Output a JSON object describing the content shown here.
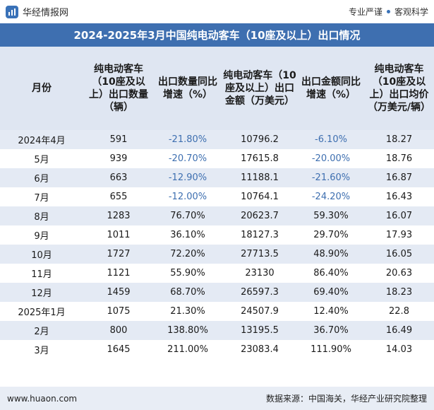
{
  "header": {
    "brand_name": "华经情报网",
    "tagline_left": "专业严谨",
    "tagline_right": "客观科学"
  },
  "title": "2024-2025年3月中国纯电动客车（10座及以上）出口情况",
  "table": {
    "columns": [
      "月份",
      "纯电动客车（10座及以上）出口数量（辆）",
      "出口数量同比增速（%）",
      "纯电动客车（10座及以上）出口金额（万美元）",
      "出口金额同比增速（%）",
      "纯电动客车（10座及以上）出口均价（万美元/辆）"
    ],
    "rows": [
      [
        "2024年4月",
        "591",
        "-21.80%",
        "10796.2",
        "-6.10%",
        "18.27"
      ],
      [
        "5月",
        "939",
        "-20.70%",
        "17615.8",
        "-20.00%",
        "18.76"
      ],
      [
        "6月",
        "663",
        "-12.90%",
        "11188.1",
        "-21.60%",
        "16.87"
      ],
      [
        "7月",
        "655",
        "-12.00%",
        "10764.1",
        "-24.20%",
        "16.43"
      ],
      [
        "8月",
        "1283",
        "76.70%",
        "20623.7",
        "59.30%",
        "16.07"
      ],
      [
        "9月",
        "1011",
        "36.10%",
        "18127.3",
        "29.70%",
        "17.93"
      ],
      [
        "10月",
        "1727",
        "72.20%",
        "27713.5",
        "48.90%",
        "16.05"
      ],
      [
        "11月",
        "1121",
        "55.90%",
        "23130",
        "86.40%",
        "20.63"
      ],
      [
        "12月",
        "1459",
        "68.70%",
        "26597.3",
        "69.40%",
        "18.23"
      ],
      [
        "2025年1月",
        "1075",
        "21.30%",
        "24507.9",
        "12.40%",
        "22.8"
      ],
      [
        "2月",
        "800",
        "138.80%",
        "13195.5",
        "36.70%",
        "16.49"
      ],
      [
        "3月",
        "1645",
        "211.00%",
        "23083.4",
        "111.90%",
        "14.03"
      ]
    ]
  },
  "footer": {
    "site": "www.huaon.com",
    "source": "数据来源：中国海关，华经产业研究院整理"
  },
  "colors": {
    "brand_blue": "#3e6fb0",
    "row_stripe": "#e4eaf4",
    "negative_text": "#3e6fb0"
  }
}
